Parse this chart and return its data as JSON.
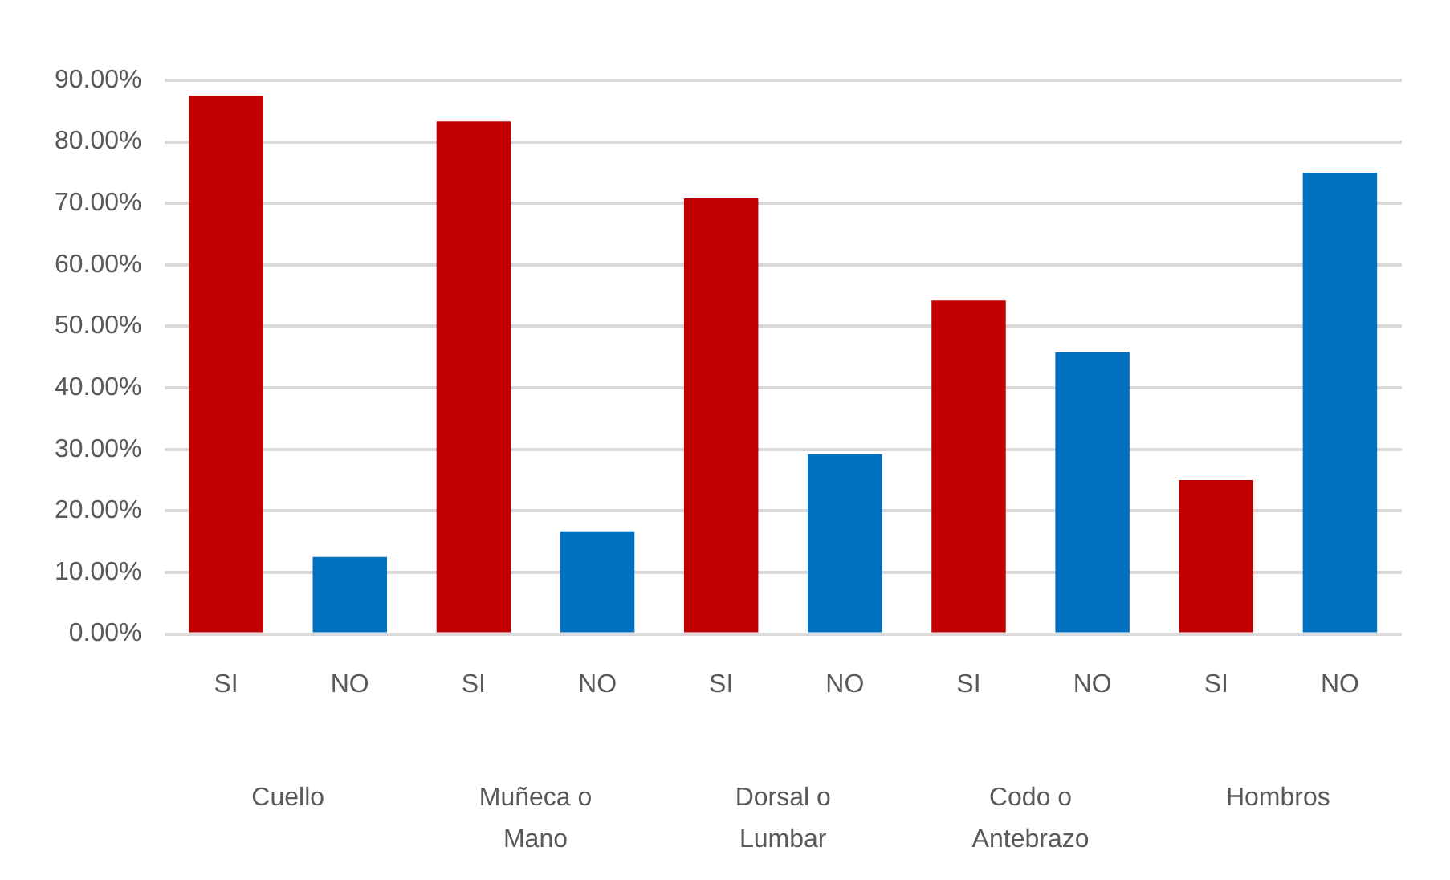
{
  "chart_data": {
    "type": "bar",
    "categories": [
      "SI",
      "NO",
      "SI",
      "NO",
      "SI",
      "NO",
      "SI",
      "NO",
      "SI",
      "NO"
    ],
    "values": [
      87.5,
      12.5,
      83.3,
      16.7,
      70.8,
      29.2,
      54.2,
      45.8,
      25,
      75
    ],
    "colors": [
      "#c00000",
      "#0070c0",
      "#c00000",
      "#0070c0",
      "#c00000",
      "#0070c0",
      "#c00000",
      "#0070c0",
      "#c00000",
      "#0070c0"
    ],
    "ylim": [
      0,
      90
    ],
    "yticks": [
      {
        "value": 0,
        "label": "0.00%"
      },
      {
        "value": 10,
        "label": "10.00%"
      },
      {
        "value": 20,
        "label": "20.00%"
      },
      {
        "value": 30,
        "label": "30.00%"
      },
      {
        "value": 40,
        "label": "40.00%"
      },
      {
        "value": 50,
        "label": "50.00%"
      },
      {
        "value": 60,
        "label": "60.00%"
      },
      {
        "value": 70,
        "label": "70.00%"
      },
      {
        "value": 80,
        "label": "80.00%"
      },
      {
        "value": 90,
        "label": "90.00%"
      }
    ],
    "annotations": [
      "Cuello",
      "Muñeca o Mano",
      "Dorsal o Lumbar",
      "Codo o Antebrazo",
      "Hombros"
    ],
    "grid": "y"
  }
}
